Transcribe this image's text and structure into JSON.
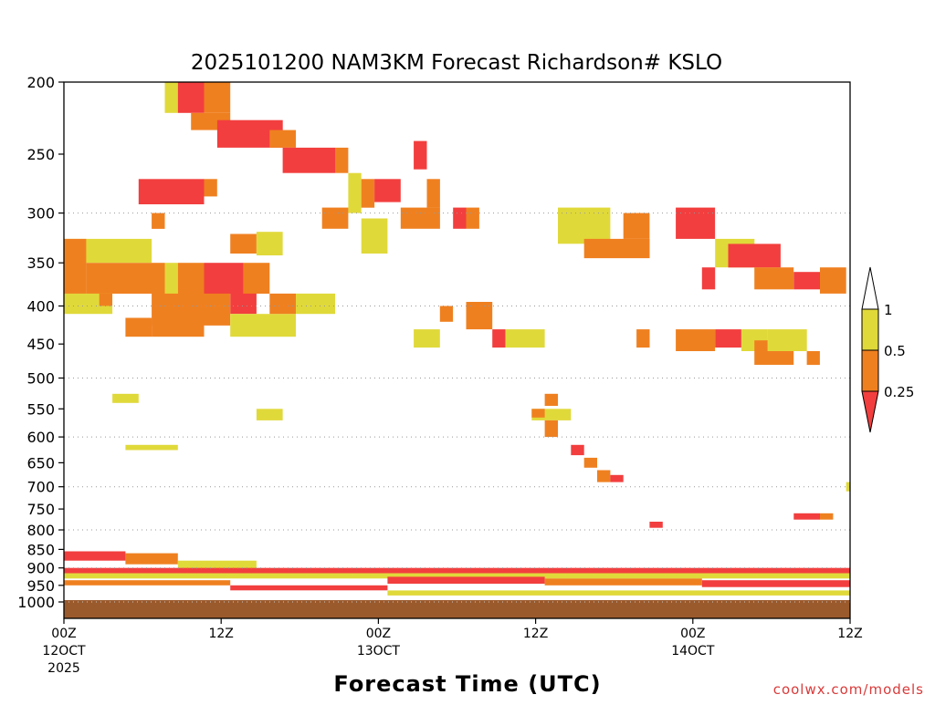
{
  "chart_data": {
    "type": "heatmap",
    "title": "2025101200 NAM3KM Forecast Richardson# KSLO",
    "xlabel": "Forecast Time (UTC)",
    "ylabel": "",
    "credit": "coolwx.com/models",
    "x_range_hours": [
      0,
      60
    ],
    "y_range_hpa": [
      200,
      1000
    ],
    "y_ticks": [
      200,
      250,
      300,
      350,
      400,
      450,
      500,
      550,
      600,
      650,
      700,
      750,
      800,
      850,
      900,
      950,
      1000
    ],
    "y_tick_labels": [
      "200",
      "250",
      "300",
      "350",
      "400",
      "450",
      "500",
      "550",
      "600",
      "650",
      "700",
      "750",
      "800",
      "850",
      "900",
      "950",
      "1000"
    ],
    "y_gridlines": [
      300,
      400,
      500,
      600,
      700,
      800,
      900,
      1000
    ],
    "x_ticks": [
      {
        "hour": 0,
        "label": "00Z",
        "date": "12OCT",
        "year": "2025"
      },
      {
        "hour": 12,
        "label": "12Z",
        "date": "",
        "year": ""
      },
      {
        "hour": 24,
        "label": "00Z",
        "date": "13OCT",
        "year": ""
      },
      {
        "hour": 36,
        "label": "12Z",
        "date": "",
        "year": ""
      },
      {
        "hour": 48,
        "label": "00Z",
        "date": "14OCT",
        "year": ""
      },
      {
        "hour": 60,
        "label": "12Z",
        "date": "",
        "year": ""
      }
    ],
    "colorbar": {
      "levels": [
        {
          "label": "1"
        },
        {
          "label": "0.5"
        },
        {
          "label": "0.25"
        }
      ],
      "colors": {
        "yellow": "#e0d93a",
        "orange": "#ef8020",
        "red": "#f23e3e"
      }
    },
    "ground_color": "#9b5a2c",
    "ground_top_hpa": 1000,
    "cells": [
      {
        "h0": 7.7,
        "h1": 8.7,
        "p0": 200,
        "p1": 220,
        "c": "y"
      },
      {
        "h0": 8.7,
        "h1": 10.7,
        "p0": 200,
        "p1": 220,
        "c": "r"
      },
      {
        "h0": 10.7,
        "h1": 12.7,
        "p0": 200,
        "p1": 220,
        "c": "o"
      },
      {
        "h0": 9.7,
        "h1": 12.7,
        "p0": 220,
        "p1": 232,
        "c": "o"
      },
      {
        "h0": 11.7,
        "h1": 16.7,
        "p0": 225,
        "p1": 245,
        "c": "r"
      },
      {
        "h0": 15.7,
        "h1": 17.7,
        "p0": 232,
        "p1": 245,
        "c": "o"
      },
      {
        "h0": 16.7,
        "h1": 20.7,
        "p0": 245,
        "p1": 265,
        "c": "r"
      },
      {
        "h0": 20.7,
        "h1": 21.7,
        "p0": 245,
        "p1": 265,
        "c": "o"
      },
      {
        "h0": 21.7,
        "h1": 22.7,
        "p0": 265,
        "p1": 300,
        "c": "y"
      },
      {
        "h0": 22.7,
        "h1": 23.7,
        "p0": 270,
        "p1": 295,
        "c": "o"
      },
      {
        "h0": 23.7,
        "h1": 25.7,
        "p0": 270,
        "p1": 290,
        "c": "r"
      },
      {
        "h0": 5.7,
        "h1": 10.7,
        "p0": 270,
        "p1": 292,
        "c": "r"
      },
      {
        "h0": 10.7,
        "h1": 11.7,
        "p0": 270,
        "p1": 285,
        "c": "o"
      },
      {
        "h0": 6.7,
        "h1": 7.7,
        "p0": 300,
        "p1": 315,
        "c": "o"
      },
      {
        "h0": 19.7,
        "h1": 21.7,
        "p0": 295,
        "p1": 315,
        "c": "o"
      },
      {
        "h0": 25.7,
        "h1": 28.7,
        "p0": 295,
        "p1": 315,
        "c": "o"
      },
      {
        "h0": 29.7,
        "h1": 30.7,
        "p0": 295,
        "p1": 315,
        "c": "r"
      },
      {
        "h0": 26.7,
        "h1": 27.7,
        "p0": 240,
        "p1": 262,
        "c": "r"
      },
      {
        "h0": 27.7,
        "h1": 28.7,
        "p0": 270,
        "p1": 295,
        "c": "o"
      },
      {
        "h0": 30.7,
        "h1": 31.7,
        "p0": 295,
        "p1": 315,
        "c": "o"
      },
      {
        "h0": 12.7,
        "h1": 14.7,
        "p0": 320,
        "p1": 340,
        "c": "o"
      },
      {
        "h0": 14.7,
        "h1": 16.7,
        "p0": 318,
        "p1": 342,
        "c": "y"
      },
      {
        "h0": 22.7,
        "h1": 24.7,
        "p0": 305,
        "p1": 340,
        "c": "y"
      },
      {
        "h0": 0.0,
        "h1": 6.7,
        "p0": 325,
        "p1": 350,
        "c": "y"
      },
      {
        "h0": 0.0,
        "h1": 1.7,
        "p0": 325,
        "p1": 400,
        "c": "o"
      },
      {
        "h0": 1.7,
        "h1": 7.7,
        "p0": 350,
        "p1": 385,
        "c": "o"
      },
      {
        "h0": 7.7,
        "h1": 8.7,
        "p0": 350,
        "p1": 385,
        "c": "y"
      },
      {
        "h0": 8.7,
        "h1": 10.7,
        "p0": 350,
        "p1": 420,
        "c": "o"
      },
      {
        "h0": 10.7,
        "h1": 13.7,
        "p0": 350,
        "p1": 385,
        "c": "r"
      },
      {
        "h0": 13.7,
        "h1": 15.7,
        "p0": 350,
        "p1": 385,
        "c": "o"
      },
      {
        "h0": 12.7,
        "h1": 14.7,
        "p0": 385,
        "p1": 410,
        "c": "r"
      },
      {
        "h0": 6.7,
        "h1": 12.7,
        "p0": 385,
        "p1": 425,
        "c": "o"
      },
      {
        "h0": 4.7,
        "h1": 6.7,
        "p0": 415,
        "p1": 440,
        "c": "o"
      },
      {
        "h0": 6.7,
        "h1": 10.7,
        "p0": 415,
        "p1": 440,
        "c": "o"
      },
      {
        "h0": 12.7,
        "h1": 17.7,
        "p0": 410,
        "p1": 440,
        "c": "y"
      },
      {
        "h0": 15.7,
        "h1": 17.7,
        "p0": 385,
        "p1": 410,
        "c": "o"
      },
      {
        "h0": 17.7,
        "h1": 20.7,
        "p0": 385,
        "p1": 410,
        "c": "y"
      },
      {
        "h0": 0.0,
        "h1": 3.7,
        "p0": 385,
        "p1": 410,
        "c": "y"
      },
      {
        "h0": 2.7,
        "h1": 3.7,
        "p0": 385,
        "p1": 400,
        "c": "o"
      },
      {
        "h0": 37.7,
        "h1": 41.7,
        "p0": 295,
        "p1": 330,
        "c": "y"
      },
      {
        "h0": 39.7,
        "h1": 44.7,
        "p0": 325,
        "p1": 345,
        "c": "o"
      },
      {
        "h0": 42.7,
        "h1": 44.7,
        "p0": 300,
        "p1": 325,
        "c": "o"
      },
      {
        "h0": 46.7,
        "h1": 49.7,
        "p0": 295,
        "p1": 325,
        "c": "r"
      },
      {
        "h0": 49.7,
        "h1": 52.7,
        "p0": 325,
        "p1": 355,
        "c": "y"
      },
      {
        "h0": 50.7,
        "h1": 54.7,
        "p0": 330,
        "p1": 355,
        "c": "r"
      },
      {
        "h0": 52.7,
        "h1": 55.7,
        "p0": 355,
        "p1": 380,
        "c": "o"
      },
      {
        "h0": 55.7,
        "h1": 57.7,
        "p0": 360,
        "p1": 380,
        "c": "r"
      },
      {
        "h0": 57.7,
        "h1": 59.7,
        "p0": 355,
        "p1": 385,
        "c": "o"
      },
      {
        "h0": 48.7,
        "h1": 49.7,
        "p0": 355,
        "p1": 380,
        "c": "r"
      },
      {
        "h0": 46.7,
        "h1": 49.7,
        "p0": 430,
        "p1": 460,
        "c": "o"
      },
      {
        "h0": 49.7,
        "h1": 51.7,
        "p0": 430,
        "p1": 455,
        "c": "r"
      },
      {
        "h0": 51.7,
        "h1": 53.7,
        "p0": 430,
        "p1": 460,
        "c": "y"
      },
      {
        "h0": 52.7,
        "h1": 55.7,
        "p0": 445,
        "p1": 480,
        "c": "o"
      },
      {
        "h0": 53.7,
        "h1": 56.7,
        "p0": 430,
        "p1": 460,
        "c": "y"
      },
      {
        "h0": 56.7,
        "h1": 57.7,
        "p0": 460,
        "p1": 480,
        "c": "o"
      },
      {
        "h0": 43.7,
        "h1": 44.7,
        "p0": 430,
        "p1": 455,
        "c": "o"
      },
      {
        "h0": 32.7,
        "h1": 33.7,
        "p0": 430,
        "p1": 455,
        "c": "r"
      },
      {
        "h0": 30.7,
        "h1": 32.7,
        "p0": 395,
        "p1": 430,
        "c": "o"
      },
      {
        "h0": 33.7,
        "h1": 36.7,
        "p0": 430,
        "p1": 455,
        "c": "y"
      },
      {
        "h0": 26.7,
        "h1": 28.7,
        "p0": 430,
        "p1": 455,
        "c": "y"
      },
      {
        "h0": 28.7,
        "h1": 29.7,
        "p0": 400,
        "p1": 420,
        "c": "o"
      },
      {
        "h0": 3.7,
        "h1": 5.7,
        "p0": 525,
        "p1": 540,
        "c": "y"
      },
      {
        "h0": 14.7,
        "h1": 16.7,
        "p0": 550,
        "p1": 570,
        "c": "y"
      },
      {
        "h0": 4.7,
        "h1": 8.7,
        "p0": 615,
        "p1": 625,
        "c": "y"
      },
      {
        "h0": 36.7,
        "h1": 37.7,
        "p0": 525,
        "p1": 545,
        "c": "o"
      },
      {
        "h0": 35.7,
        "h1": 38.7,
        "p0": 550,
        "p1": 570,
        "c": "y"
      },
      {
        "h0": 35.7,
        "h1": 36.7,
        "p0": 550,
        "p1": 565,
        "c": "o"
      },
      {
        "h0": 36.7,
        "h1": 37.7,
        "p0": 570,
        "p1": 600,
        "c": "o"
      },
      {
        "h0": 38.7,
        "h1": 39.7,
        "p0": 615,
        "p1": 635,
        "c": "r"
      },
      {
        "h0": 39.7,
        "h1": 40.7,
        "p0": 640,
        "p1": 660,
        "c": "o"
      },
      {
        "h0": 40.7,
        "h1": 41.7,
        "p0": 665,
        "p1": 690,
        "c": "o"
      },
      {
        "h0": 41.7,
        "h1": 42.7,
        "p0": 675,
        "p1": 690,
        "c": "r"
      },
      {
        "h0": 44.7,
        "h1": 45.7,
        "p0": 780,
        "p1": 795,
        "c": "r"
      },
      {
        "h0": 55.7,
        "h1": 57.7,
        "p0": 760,
        "p1": 775,
        "c": "r"
      },
      {
        "h0": 57.7,
        "h1": 58.7,
        "p0": 760,
        "p1": 775,
        "c": "o"
      },
      {
        "h0": 59.7,
        "h1": 60.0,
        "p0": 690,
        "p1": 710,
        "c": "y"
      },
      {
        "h0": 0.0,
        "h1": 4.7,
        "p0": 855,
        "p1": 880,
        "c": "r"
      },
      {
        "h0": 4.7,
        "h1": 8.7,
        "p0": 860,
        "p1": 890,
        "c": "o"
      },
      {
        "h0": 8.7,
        "h1": 14.7,
        "p0": 880,
        "p1": 910,
        "c": "y"
      },
      {
        "h0": 0.0,
        "h1": 60.0,
        "p0": 900,
        "p1": 915,
        "c": "r"
      },
      {
        "h0": 0.0,
        "h1": 60.0,
        "p0": 915,
        "p1": 930,
        "c": "y"
      },
      {
        "h0": 24.7,
        "h1": 36.7,
        "p0": 925,
        "p1": 945,
        "c": "r"
      },
      {
        "h0": 36.7,
        "h1": 48.7,
        "p0": 930,
        "p1": 950,
        "c": "o"
      },
      {
        "h0": 48.7,
        "h1": 60.0,
        "p0": 935,
        "p1": 955,
        "c": "r"
      },
      {
        "h0": 0.0,
        "h1": 12.7,
        "p0": 935,
        "p1": 950,
        "c": "o"
      },
      {
        "h0": 12.7,
        "h1": 24.7,
        "p0": 950,
        "p1": 965,
        "c": "r"
      },
      {
        "h0": 24.7,
        "h1": 60.0,
        "p0": 965,
        "p1": 980,
        "c": "y"
      }
    ]
  }
}
